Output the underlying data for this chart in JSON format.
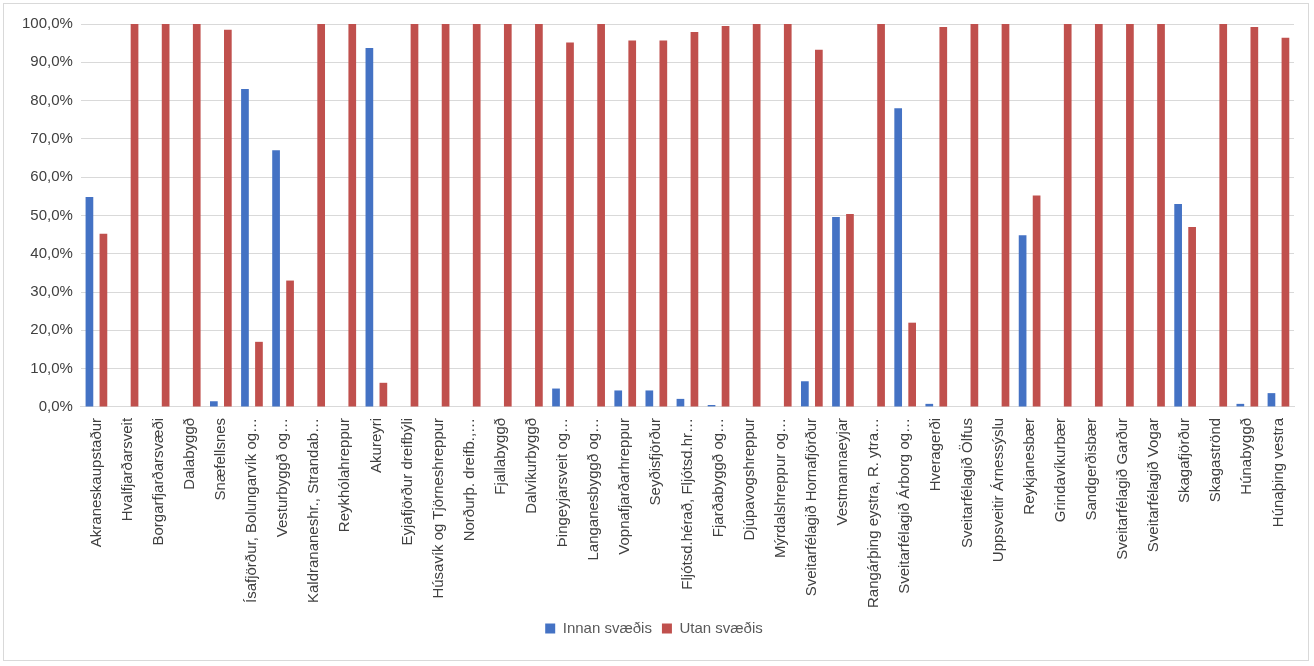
{
  "chart_data": {
    "type": "bar",
    "categories": [
      "Akraneskaupstaður",
      "Hvalfjarðarsveit",
      "Borgarfjarðarsvæði",
      "Dalabyggð",
      "Snæfellsnes",
      "Ísafjörður, Bolungarvík og…",
      "Vesturbyggð og…",
      "Kaldrananeshr., Strandab…",
      "Reykhólahreppur",
      "Akureyri",
      "Eyjafjörður dreifbýli",
      "Húsavík og Tjörneshreppur",
      "Norðurþ. dreifb.,…",
      "Fjallabyggð",
      "Dalvíkurbyggð",
      "Þingeyjarsveit og…",
      "Langanesbyggð og…",
      "Vopnafjarðarhreppur",
      "Seyðisfjörður",
      "Fljótsd.hérað, Fljótsd.hr…",
      "Fjarðabyggð og…",
      "Djúpavogshreppur",
      "Mýrdalshreppur og…",
      "Sveitarfélagið Hornafjörður",
      "Vestmannaeyjar",
      "Rangárþing eystra, R. ytra…",
      "Sveitarfélagið Árborg og…",
      "Hveragerði",
      "Sveitarfélagið Ölfus",
      "Uppsveitir Árnessýslu",
      "Reykjanesbær",
      "Grindavíkurbær",
      "Sandgerðisbær",
      "Sveitarfélagið Garður",
      "Sveitarfélagið Vogar",
      "Skagafjörður",
      "Skagaströnd",
      "Húnabyggð",
      "Húnaþing vestra"
    ],
    "series": [
      {
        "name": "Innan svæðis",
        "color": "#4472c4",
        "values": [
          54.8,
          0,
          0,
          0,
          1.5,
          83,
          67,
          0,
          0,
          93.7,
          0,
          0,
          0,
          0,
          0,
          4.8,
          0,
          4.3,
          4.3,
          2.1,
          0.5,
          0,
          0,
          6.7,
          49.6,
          0,
          78,
          0.8,
          0,
          0,
          44.8,
          0,
          0,
          0,
          0,
          53,
          0,
          0.8,
          3.6
        ]
      },
      {
        "name": "Utan svæðis",
        "color": "#c0504d",
        "values": [
          45.2,
          100,
          100,
          100,
          98.5,
          17,
          33,
          100,
          100,
          6.3,
          100,
          100,
          100,
          100,
          100,
          95.2,
          100,
          95.7,
          95.7,
          97.9,
          99.5,
          100,
          100,
          93.3,
          50.4,
          100,
          22,
          99.2,
          100,
          100,
          55.2,
          100,
          100,
          100,
          100,
          47,
          100,
          99.2,
          96.4
        ]
      }
    ],
    "ylim": [
      0,
      100
    ],
    "yticks": [
      {
        "value": 0,
        "label": "0,0%"
      },
      {
        "value": 10,
        "label": "10,0%"
      },
      {
        "value": 20,
        "label": "20,0%"
      },
      {
        "value": 30,
        "label": "30,0%"
      },
      {
        "value": 40,
        "label": "40,0%"
      },
      {
        "value": 50,
        "label": "50,0%"
      },
      {
        "value": 60,
        "label": "60,0%"
      },
      {
        "value": 70,
        "label": "70,0%"
      },
      {
        "value": 80,
        "label": "80,0%"
      },
      {
        "value": 90,
        "label": "90,0%"
      },
      {
        "value": 100,
        "label": "100,0%"
      }
    ],
    "grid": "y",
    "legend": "bottom"
  }
}
